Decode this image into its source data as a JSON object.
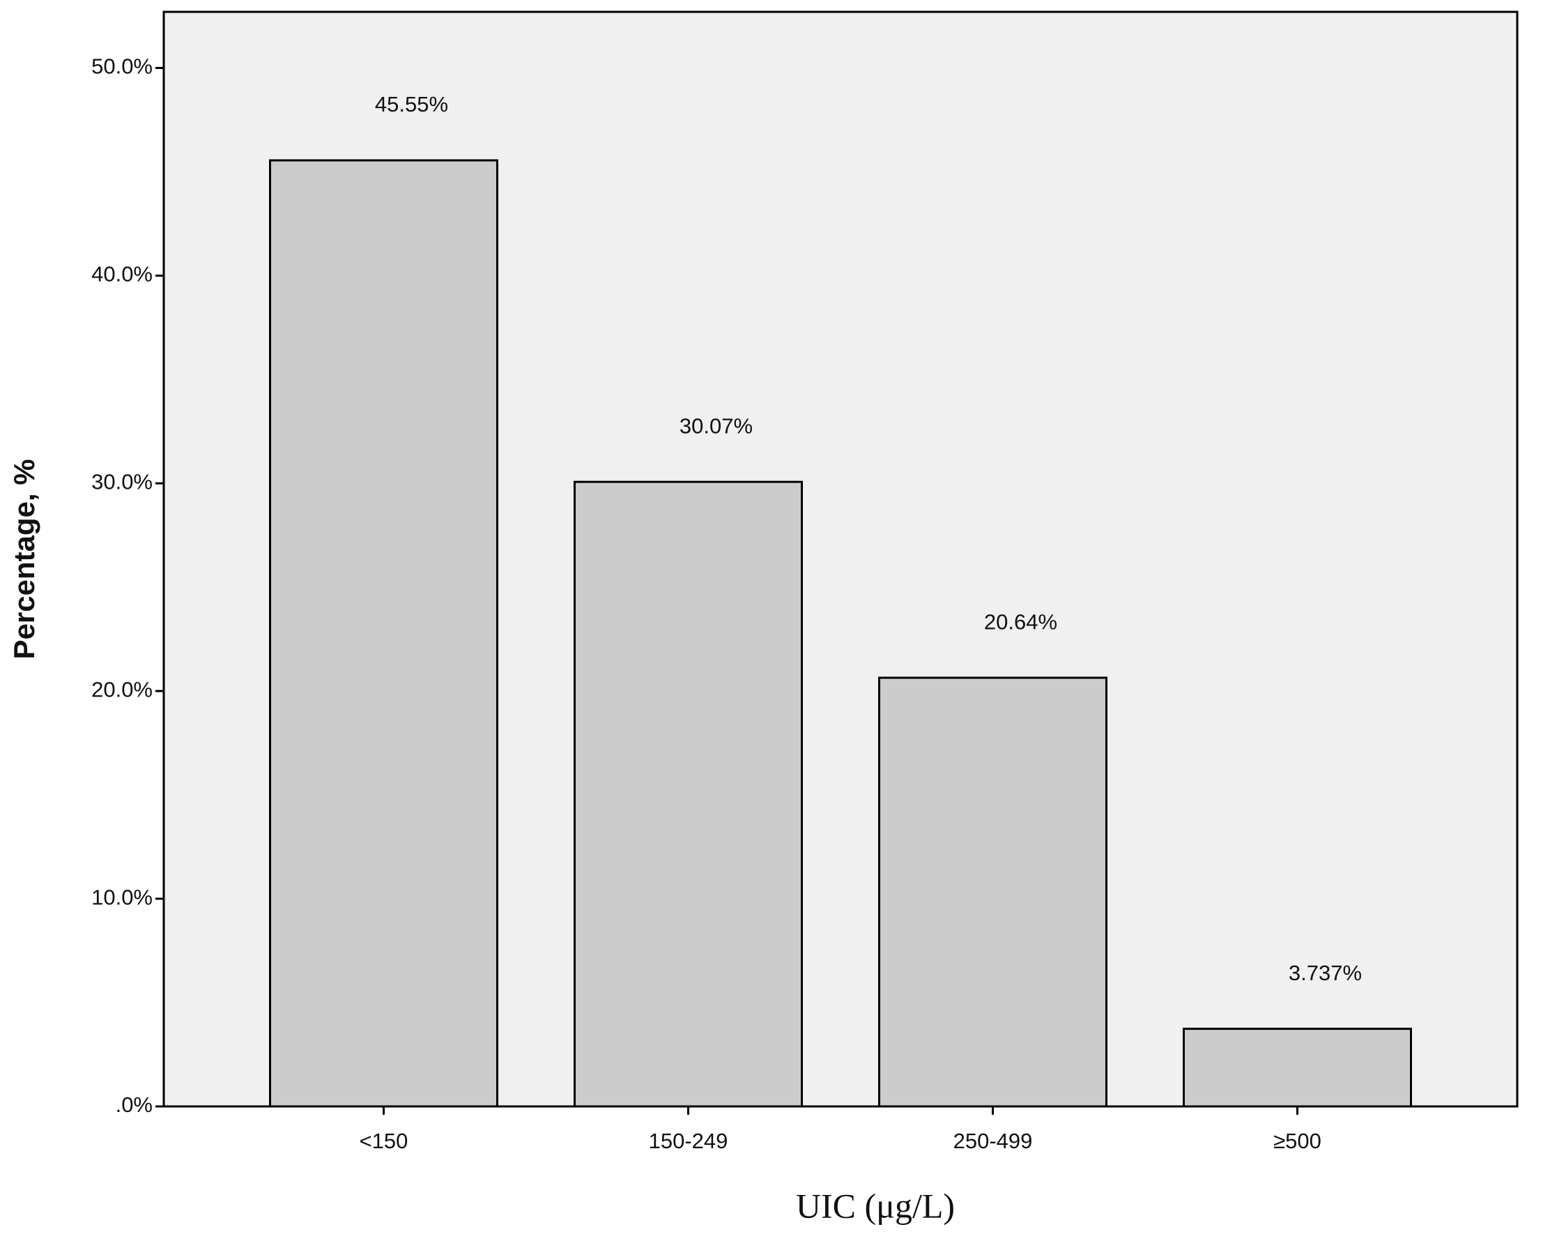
{
  "chart_data": {
    "type": "bar",
    "x_label": "UIC (μg/L)",
    "y_label": "Percentage, %",
    "categories": [
      "<150",
      "150-249",
      "250-499",
      "≥500"
    ],
    "values": [
      45.55,
      30.07,
      20.64,
      3.737
    ],
    "value_labels": [
      "45.55%",
      "30.07%",
      "20.64%",
      "3.737%"
    ],
    "color": "#cccccc",
    "ylim": [
      0,
      52.7
    ],
    "yticks": [
      {
        "value": 0,
        "label": ".0%"
      },
      {
        "value": 10,
        "label": "10.0%"
      },
      {
        "value": 20,
        "label": "20.0%"
      },
      {
        "value": 30,
        "label": "30.0%"
      },
      {
        "value": 40,
        "label": "40.0%"
      },
      {
        "value": 50,
        "label": "50.0%"
      }
    ],
    "grid": false
  }
}
